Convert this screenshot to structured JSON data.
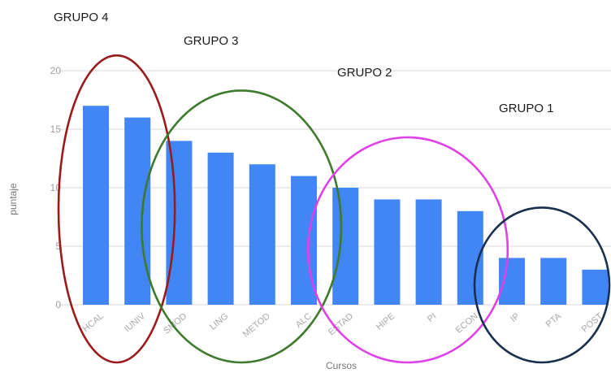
{
  "chart_data": {
    "type": "bar",
    "title": "",
    "xlabel": "Cursos",
    "ylabel": "puntaje",
    "ylim": [
      0,
      20
    ],
    "yticks": [
      0,
      5,
      10,
      15,
      20
    ],
    "grid": true,
    "bar_color": "#4285f4",
    "categories": [
      "HCAL",
      "IUNIV",
      "SMOD",
      "LING",
      "METOD",
      "ALC",
      "ESTAD",
      "HIPE",
      "PI",
      "ECON",
      "IP",
      "PTA",
      "POST"
    ],
    "values": [
      17,
      16,
      14,
      13,
      12,
      11,
      10,
      9,
      9,
      8,
      4,
      4,
      3
    ],
    "annotations": [
      {
        "label": "GRUPO 4",
        "color": "#9b1b1b",
        "categories": [
          "HCAL",
          "IUNIV"
        ]
      },
      {
        "label": "GRUPO 3",
        "color": "#3d7a2b",
        "categories": [
          "SMOD",
          "LING",
          "METOD",
          "ALC"
        ]
      },
      {
        "label": "GRUPO 2",
        "color": "#e040e8",
        "categories": [
          "ESTAD",
          "HIPE",
          "PI",
          "ECON"
        ]
      },
      {
        "label": "GRUPO 1",
        "color": "#17304f",
        "categories": [
          "IP",
          "PTA",
          "POST"
        ]
      }
    ]
  }
}
